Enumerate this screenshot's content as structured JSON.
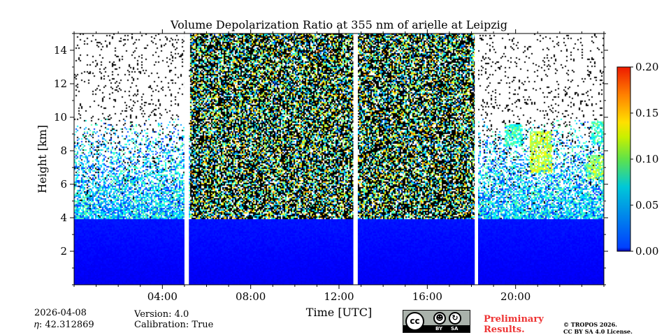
{
  "chart_data": {
    "type": "heatmap",
    "title": "Volume Depolarization Ratio at 355 nm of arielle at Leipzig",
    "xlabel": "Time [UTC]",
    "ylabel": "Height [km]",
    "xlim_hours": [
      0,
      24
    ],
    "ylim": [
      0,
      15
    ],
    "x_ticks": [
      {
        "hour": 4,
        "label": "04:00"
      },
      {
        "hour": 8,
        "label": "08:00"
      },
      {
        "hour": 12,
        "label": "12:00"
      },
      {
        "hour": 16,
        "label": "16:00"
      },
      {
        "hour": 20,
        "label": "20:00"
      }
    ],
    "y_ticks": [
      {
        "value": 2,
        "label": "2"
      },
      {
        "value": 4,
        "label": "4"
      },
      {
        "value": 6,
        "label": "6"
      },
      {
        "value": 8,
        "label": "8"
      },
      {
        "value": 10,
        "label": "10"
      },
      {
        "value": 12,
        "label": "12"
      },
      {
        "value": 14,
        "label": "14"
      }
    ],
    "colorbar": {
      "min": 0.0,
      "max": 0.2,
      "colormap": "jet",
      "ticks": [
        {
          "value": 0.0,
          "label": "0.00"
        },
        {
          "value": 0.05,
          "label": "0.05"
        },
        {
          "value": 0.1,
          "label": "0.10"
        },
        {
          "value": 0.15,
          "label": "0.15"
        },
        {
          "value": 0.2,
          "label": "0.20"
        }
      ]
    },
    "data_gaps_hours": [
      [
        5.0,
        5.2
      ],
      [
        12.65,
        12.85
      ],
      [
        18.15,
        18.3
      ]
    ],
    "noisy_high_altitude_periods_hours": [
      [
        5.2,
        12.65
      ],
      [
        12.85,
        18.15
      ]
    ],
    "boundary_layer_top_km": 4.0,
    "enhanced_depol_features": [
      {
        "time_hours": [
          20.6,
          21.6
        ],
        "height_km": [
          6.7,
          9.2
        ],
        "value": 0.12
      },
      {
        "time_hours": [
          19.5,
          20.3
        ],
        "height_km": [
          8.3,
          9.6
        ],
        "value": 0.09
      },
      {
        "time_hours": [
          23.2,
          24.0
        ],
        "height_km": [
          6.3,
          7.8
        ],
        "value": 0.11
      },
      {
        "time_hours": [
          23.4,
          24.0
        ],
        "height_km": [
          8.5,
          9.8
        ],
        "value": 0.09
      }
    ]
  },
  "info": {
    "date": "2026-04-08",
    "eta": "𝜂: 42.312869",
    "version": "Version: 4.0",
    "calibration": "Calibration: True",
    "preliminary_line1": "Preliminary",
    "preliminary_line2": "Results.",
    "copyright_line1": "© TROPOS 2026.",
    "copyright_line2": "CC BY SA 4.0 License."
  },
  "license_badge": {
    "cc": "cc",
    "by": "BY",
    "sa": "SA"
  },
  "colors": {
    "background": "#ffffff",
    "axis": "#000000",
    "preliminary": "#ee3333"
  }
}
